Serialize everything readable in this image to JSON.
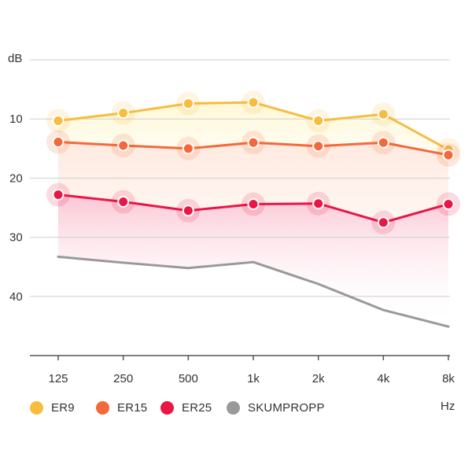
{
  "chart_data": {
    "type": "line",
    "title": "",
    "ylabel": "dB",
    "xlabel": "Hz",
    "categories": [
      "125",
      "250",
      "500",
      "1k",
      "2k",
      "4k",
      "8k"
    ],
    "ylim": [
      0,
      50
    ],
    "y_inverted": true,
    "y_ticks": [
      10,
      20,
      30,
      40
    ],
    "grid": true,
    "legend_position": "bottom",
    "series": [
      {
        "name": "ER9",
        "color": "#F6BD3E",
        "values": [
          10.3,
          9.0,
          7.4,
          7.2,
          10.3,
          9.2,
          15.2
        ]
      },
      {
        "name": "ER15",
        "color": "#F4683A",
        "values": [
          13.9,
          14.5,
          15.0,
          14.0,
          14.6,
          14.0,
          16.1
        ]
      },
      {
        "name": "ER25",
        "color": "#E91646",
        "values": [
          22.8,
          24.0,
          25.5,
          24.4,
          24.3,
          27.5,
          24.4
        ]
      },
      {
        "name": "SKUMPROPP",
        "color": "#999999",
        "values": [
          33.3,
          34.3,
          35.2,
          34.2,
          37.9,
          42.3,
          45.1
        ]
      }
    ]
  }
}
